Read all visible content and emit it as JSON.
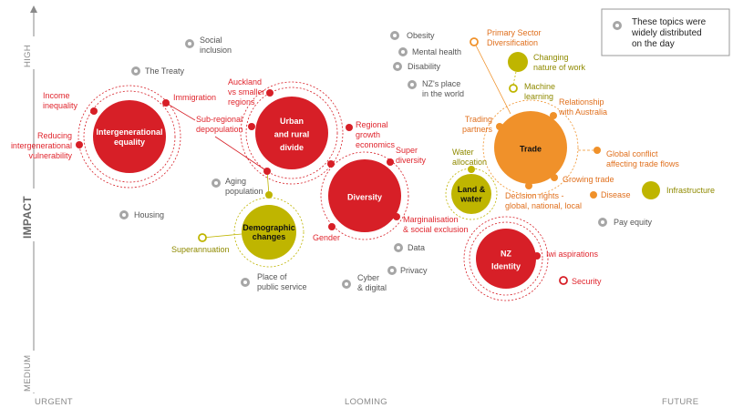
{
  "colors": {
    "red": "#d71f27",
    "red_text": "#e0262e",
    "orange": "#f0912a",
    "orange_text": "#e0701e",
    "olive": "#bfb500",
    "olive_text": "#8f8a00",
    "gray": "#a6a6a6",
    "gray_text": "#555555"
  },
  "axes": {
    "y_label": "IMPACT",
    "y_high": "HIGH",
    "y_medium": "MEDIUM",
    "x_urgent": "URGENT",
    "x_looming": "LOOMING",
    "x_future": "FUTURE"
  },
  "legend": {
    "icon": "gray-star-badge-icon",
    "lines": [
      "These topics were",
      "widely distributed",
      "on the day"
    ]
  },
  "hubs": [
    {
      "id": "intergenerational",
      "lines": [
        "Intergenerational",
        "equality"
      ],
      "color": "red"
    },
    {
      "id": "urban",
      "lines": [
        "Urban",
        "and rural",
        "divide"
      ],
      "color": "red"
    },
    {
      "id": "diversity",
      "lines": [
        "Diversity"
      ],
      "color": "red"
    },
    {
      "id": "demographic",
      "lines": [
        "Demographic",
        "changes"
      ],
      "color": "olive"
    },
    {
      "id": "trade",
      "lines": [
        "Trade"
      ],
      "color": "orange"
    },
    {
      "id": "land",
      "lines": [
        "Land &",
        "water"
      ],
      "color": "olive"
    },
    {
      "id": "nzidentity",
      "lines": [
        "NZ",
        "Identity"
      ],
      "color": "red"
    }
  ],
  "satellites": [
    {
      "id": "income",
      "lines": [
        "Income",
        "inequality"
      ],
      "color": "red"
    },
    {
      "id": "immigration",
      "lines": [
        "Immigration"
      ],
      "color": "red"
    },
    {
      "id": "reducing",
      "lines": [
        "Reducing",
        "intergenerational",
        "vulnerability"
      ],
      "color": "red"
    },
    {
      "id": "auckland",
      "lines": [
        "Auckland",
        "vs smaller",
        "regions"
      ],
      "color": "red"
    },
    {
      "id": "subregional",
      "lines": [
        "Sub-regional",
        "depopulation"
      ],
      "color": "red"
    },
    {
      "id": "junction",
      "lines": [],
      "color": "red"
    },
    {
      "id": "regional",
      "lines": [
        "Regional",
        "growth",
        "economics"
      ],
      "color": "red"
    },
    {
      "id": "urbdiv",
      "lines": [],
      "color": "red"
    },
    {
      "id": "super",
      "lines": [
        "Super",
        "diversity"
      ],
      "color": "red"
    },
    {
      "id": "marginalisation",
      "lines": [
        "Marginalisation",
        "& social exclusion"
      ],
      "color": "red"
    },
    {
      "id": "gender",
      "lines": [
        "Gender"
      ],
      "color": "red"
    },
    {
      "id": "demotop",
      "lines": [],
      "color": "olive"
    },
    {
      "id": "superannuation",
      "lines": [
        "Superannuation"
      ],
      "color": "olive",
      "hollow": true
    },
    {
      "id": "primary",
      "lines": [
        "Primary Sector",
        "Diversification"
      ],
      "color": "orange",
      "hollow": true
    },
    {
      "id": "changing",
      "lines": [
        "Changing",
        "nature of work"
      ],
      "color": "olive"
    },
    {
      "id": "machine",
      "lines": [
        "Machine",
        "learning"
      ],
      "color": "olive",
      "hollow": true
    },
    {
      "id": "australia",
      "lines": [
        "Relationship",
        "with Australia"
      ],
      "color": "orange"
    },
    {
      "id": "trading",
      "lines": [
        "Trading",
        "partners"
      ],
      "color": "orange"
    },
    {
      "id": "global",
      "lines": [
        "Global conflict",
        "affecting trade flows"
      ],
      "color": "orange"
    },
    {
      "id": "growing",
      "lines": [
        "Growing trade"
      ],
      "color": "orange"
    },
    {
      "id": "decision",
      "lines": [
        "Decision rights -",
        "global, national, local"
      ],
      "color": "orange"
    },
    {
      "id": "disease",
      "lines": [
        "Disease"
      ],
      "color": "orange"
    },
    {
      "id": "infrastructure",
      "lines": [
        "Infrastructure"
      ],
      "color": "olive"
    },
    {
      "id": "water",
      "lines": [
        "Water",
        "allocation"
      ],
      "color": "olive"
    },
    {
      "id": "iwi",
      "lines": [
        "Iwi aspirations"
      ],
      "color": "red"
    },
    {
      "id": "security",
      "lines": [
        "Security"
      ],
      "color": "red",
      "hollow": true
    }
  ],
  "distributed_topics": [
    {
      "id": "social",
      "lines": [
        "Social",
        "inclusion"
      ]
    },
    {
      "id": "treaty",
      "lines": [
        "The Treaty"
      ]
    },
    {
      "id": "obesity",
      "lines": [
        "Obesity"
      ]
    },
    {
      "id": "mental",
      "lines": [
        "Mental health"
      ]
    },
    {
      "id": "disability",
      "lines": [
        "Disability"
      ]
    },
    {
      "id": "nzplace",
      "lines": [
        "NZ's place",
        "in the world"
      ]
    },
    {
      "id": "aging",
      "lines": [
        "Aging",
        "population"
      ]
    },
    {
      "id": "housing",
      "lines": [
        "Housing"
      ]
    },
    {
      "id": "public",
      "lines": [
        "Place of",
        "public service"
      ]
    },
    {
      "id": "cyber",
      "lines": [
        "Cyber",
        "& digital"
      ]
    },
    {
      "id": "privacy",
      "lines": [
        "Privacy"
      ]
    },
    {
      "id": "data",
      "lines": [
        "Data"
      ]
    },
    {
      "id": "payequity",
      "lines": [
        "Pay equity"
      ]
    }
  ]
}
